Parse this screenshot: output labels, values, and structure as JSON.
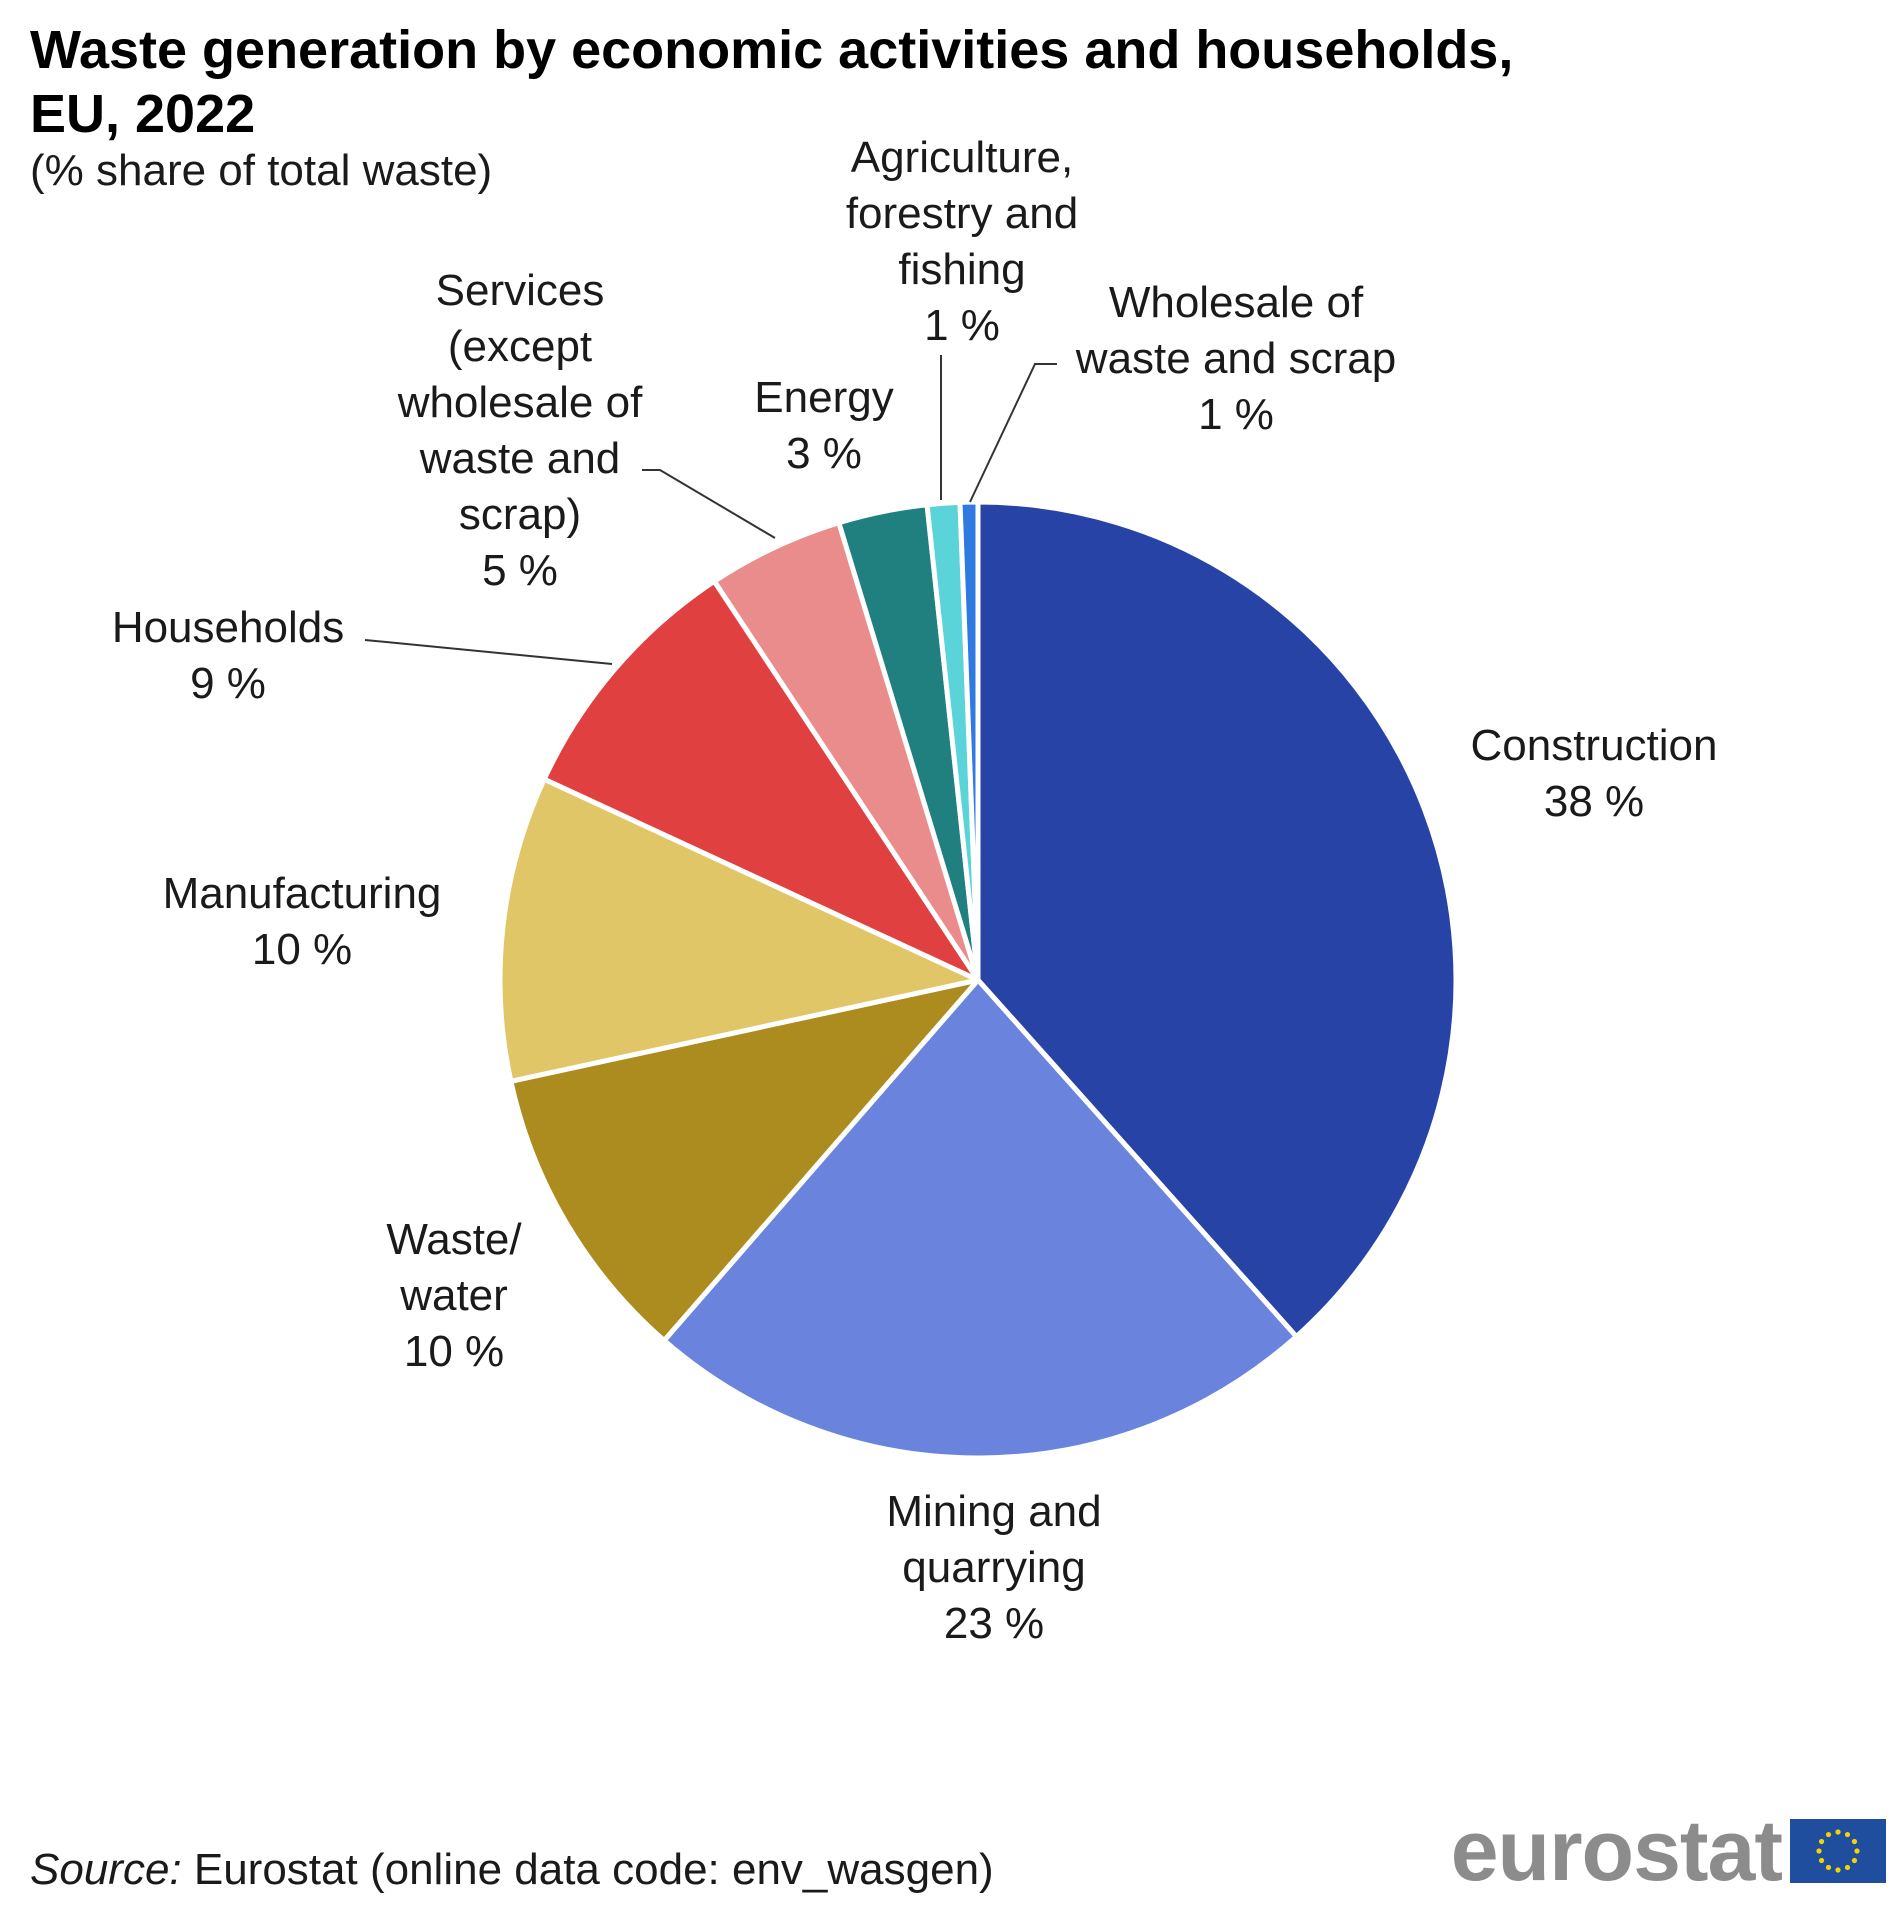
{
  "header": {
    "title": "Waste generation by economic activities and households, EU, 2022",
    "subtitle": "(% share of total waste)"
  },
  "chart_data": {
    "type": "pie",
    "title": "Waste generation by economic activities and households, EU, 2022",
    "subtitle": "(% share of total waste)",
    "slices": [
      {
        "key": "construction",
        "label_lines": [
          "Construction"
        ],
        "value_label": "38 %",
        "value": 38.4,
        "color": "#2743a6"
      },
      {
        "key": "mining",
        "label_lines": [
          "Mining and",
          "quarrying"
        ],
        "value_label": "23 %",
        "value": 23.0,
        "color": "#6a84dd"
      },
      {
        "key": "waste-water",
        "label_lines": [
          "Waste/",
          "water"
        ],
        "value_label": "10 %",
        "value": 10.2,
        "color": "#ad8c1f"
      },
      {
        "key": "manufacturing",
        "label_lines": [
          "Manufacturing"
        ],
        "value_label": "10 %",
        "value": 10.3,
        "color": "#e0c666"
      },
      {
        "key": "households",
        "label_lines": [
          "Households"
        ],
        "value_label": "9 %",
        "value": 8.8,
        "color": "#e04040"
      },
      {
        "key": "services",
        "label_lines": [
          "Services",
          "(except",
          "wholesale of",
          "waste and",
          "scrap)"
        ],
        "value_label": "5 %",
        "value": 4.6,
        "color": "#ea8c8c"
      },
      {
        "key": "energy",
        "label_lines": [
          "Energy"
        ],
        "value_label": "3 %",
        "value": 3.0,
        "color": "#208080"
      },
      {
        "key": "agriculture",
        "label_lines": [
          "Agriculture,",
          "forestry and",
          "fishing"
        ],
        "value_label": "1 %",
        "value": 1.1,
        "color": "#5ad4d8"
      },
      {
        "key": "wholesale",
        "label_lines": [
          "Wholesale of",
          "waste and scrap"
        ],
        "value_label": "1 %",
        "value": 0.6,
        "color": "#2f7ae0"
      }
    ]
  },
  "footer": {
    "source_label": "Source:",
    "source_text": " Eurostat (online data code: env_wasgen)"
  },
  "logo": {
    "text": "eurostat",
    "flag_color": "#1f4e9e",
    "star_color": "#f5d300"
  }
}
